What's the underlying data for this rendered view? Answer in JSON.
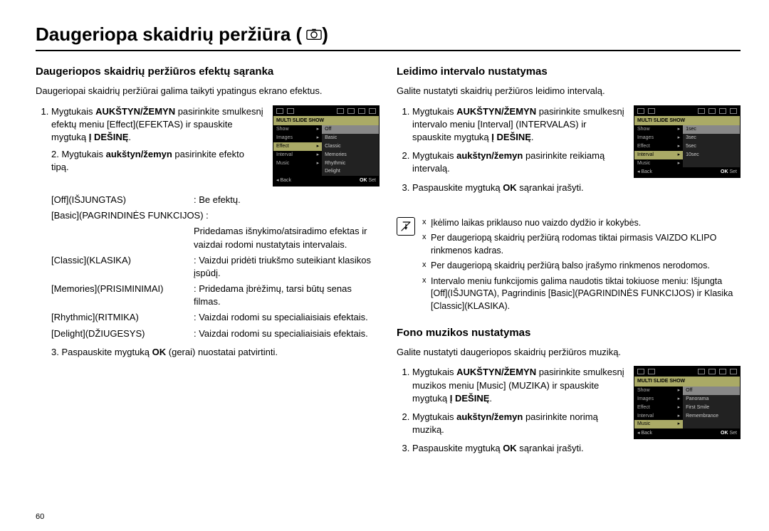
{
  "page": {
    "title": "Daugeriopa skaidrių peržiūra (",
    "title_suffix": ")",
    "number": "60"
  },
  "left": {
    "heading": "Daugeriopos skaidrių peržiūros efektų sąranka",
    "intro": "Daugeriopai skaidrių peržiūrai galima taikyti ypatingus ekrano efektus.",
    "step1_a": "Mygtukais ",
    "step1_b": "AUKŠTYN/ŽEMYN",
    "step1_c": " pasirinkite smulkesnį efektų meniu [Effect](EFEKTAS) ir spauskite mygtuką ",
    "step1_d": "Į DEŠINĘ",
    "step1_e": ".",
    "step2_a": "Mygtukais ",
    "step2_b": "aukštyn/žemyn",
    "step2_c": " pasirinkite efekto tipą.",
    "defs": [
      {
        "term": "[Off](IŠJUNGTAS)",
        "desc": ": Be efektų."
      },
      {
        "term": "[Basic](PAGRINDINĖS FUNKCIJOS) :",
        "desc": ""
      },
      {
        "full": "Pridedamas išnykimo/atsiradimo efektas ir vaizdai rodomi nustatytais intervalais."
      },
      {
        "term": "[Classic](KLASIKA)",
        "desc": ": Vaizdui pridėti triukšmo suteikiant klasikos įspūdį."
      },
      {
        "term": "[Memories](PRISIMINIMAI)",
        "desc": ": Pridedama įbrėžimų, tarsi būtų senas filmas."
      },
      {
        "term": "[Rhythmic](RITMIKA)",
        "desc": ": Vaizdai rodomi su specialiaisiais efektais."
      },
      {
        "term": "[Delight](DŽIUGESYS)",
        "desc": ": Vaizdai rodomi su specialiaisiais efektais."
      }
    ],
    "step3_a": "Paspauskite mygtuką ",
    "step3_b": "OK",
    "step3_c": " (gerai) nuostatai patvirtinti.",
    "lcd": {
      "header": "MULTI SLIDE SHOW",
      "menu": [
        "Show",
        "Images",
        "Effect",
        "Interval",
        "Music"
      ],
      "sub": [
        "Off",
        "Basic",
        "Classic",
        "Memories",
        "Rhythmic",
        "Delight"
      ],
      "sel_menu": 2,
      "sel_sub": 0,
      "back": "Back",
      "set": "Set",
      "ok": "OK"
    }
  },
  "right1": {
    "heading": "Leidimo intervalo nustatymas",
    "intro": "Galite nustatyti skaidrių peržiūros leidimo intervalą.",
    "step1_a": "Mygtukais ",
    "step1_b": "AUKŠTYN/ŽEMYN",
    "step1_c": " pasirinkite smulkesnį intervalo meniu [Interval] (INTERVALAS) ir spauskite mygtuką ",
    "step1_d": "Į DEŠINĘ",
    "step1_e": ".",
    "step2_a": "Mygtukais ",
    "step2_b": "aukštyn/žemyn",
    "step2_c": " pasirinkite reikiamą intervalą.",
    "step3_a": "Paspauskite mygtuką ",
    "step3_b": "OK",
    "step3_c": " sąrankai įrašyti.",
    "notes": [
      "Įkėlimo laikas priklauso nuo vaizdo dydžio ir kokybės.",
      "Per daugeriopą skaidrių peržiūrą rodomas tiktai pirmasis VAIZDO KLIPO rinkmenos kadras.",
      "Per daugeriopą skaidrių peržiūrą balso įrašymo rinkmenos nerodomos.",
      "Intervalo meniu funkcijomis galima naudotis tiktai tokiuose meniu: Išjungta [Off](IŠJUNGTA), Pagrindinis [Basic](PAGRINDINĖS FUNKCIJOS) ir Klasika [Classic](KLASIKA)."
    ],
    "lcd": {
      "header": "MULTI SLIDE SHOW",
      "menu": [
        "Show",
        "Images",
        "Effect",
        "Interval",
        "Music"
      ],
      "sub": [
        "1sec",
        "3sec",
        "5sec",
        "10sec"
      ],
      "sel_menu": 3,
      "sel_sub": 0,
      "back": "Back",
      "set": "Set",
      "ok": "OK"
    }
  },
  "right2": {
    "heading": "Fono muzikos nustatymas",
    "intro": "Galite nustatyti daugeriopos skaidrių peržiūros muziką.",
    "step1_a": "Mygtukais ",
    "step1_b": "AUKŠTYN/ŽEMYN",
    "step1_c": " pasirinkite smulkesnį muzikos meniu [Music] (MUZIKA) ir spauskite mygtuką ",
    "step1_d": "Į DEŠINĘ",
    "step1_e": ".",
    "step2_a": "Mygtukais ",
    "step2_b": "aukštyn/žemyn",
    "step2_c": " pasirinkite norimą muziką.",
    "step3_a": "Paspauskite mygtuką ",
    "step3_b": "OK",
    "step3_c": " sąrankai įrašyti.",
    "lcd": {
      "header": "MULTI SLIDE SHOW",
      "menu": [
        "Show",
        "Images",
        "Effect",
        "Interval",
        "Music"
      ],
      "sub": [
        "Off",
        "Panorama",
        "First Smile",
        "Remembrance"
      ],
      "sel_menu": 4,
      "sel_sub": 0,
      "back": "Back",
      "set": "Set",
      "ok": "OK"
    }
  }
}
